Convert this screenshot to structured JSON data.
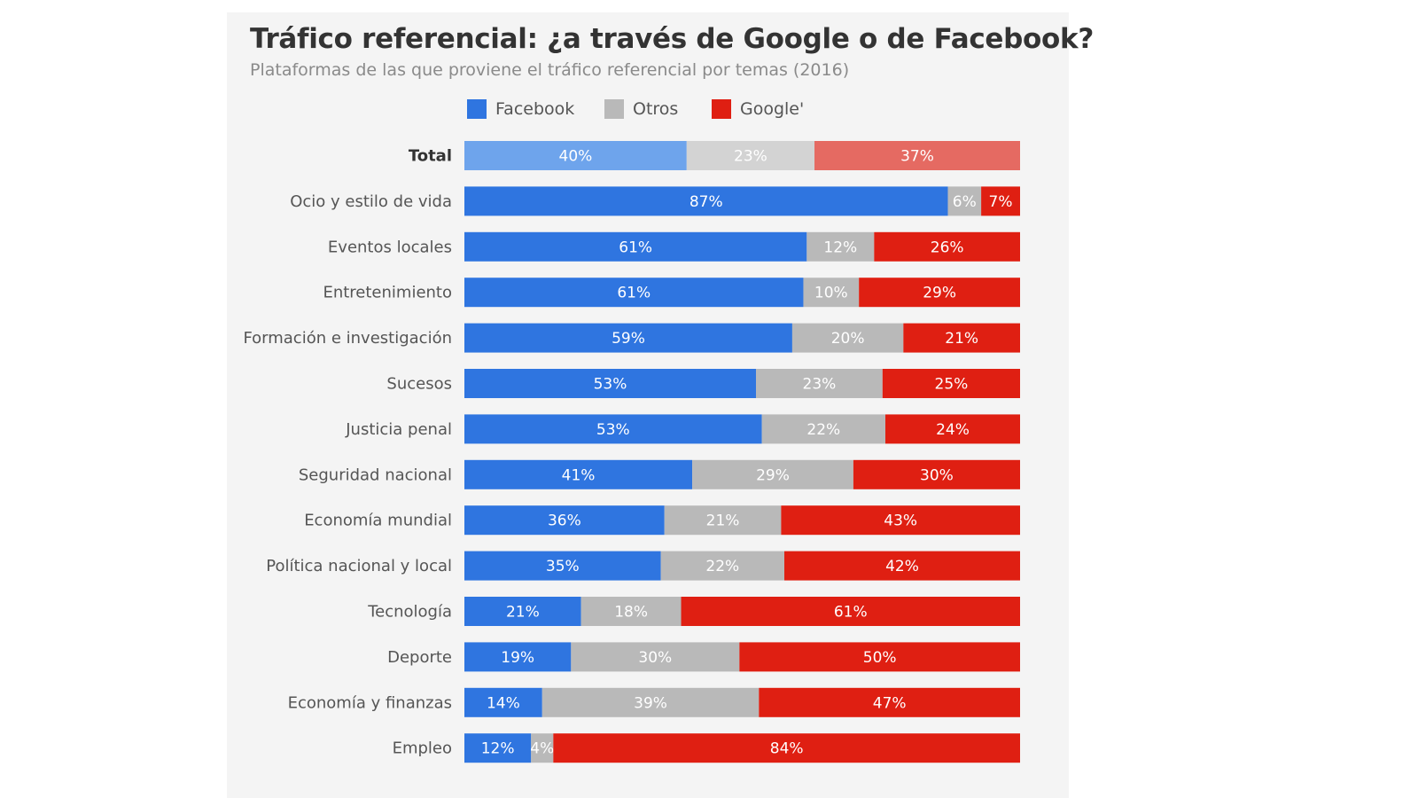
{
  "title": "Tráfico referencial: ¿a través de Google o de Facebook?",
  "subtitle": "Plataformas de las que proviene el tráfico referencial por temas (2016)",
  "colors": {
    "facebook": "#2f75e0",
    "otros": "#b9b9b9",
    "google": "#df1f12",
    "facebook_total": "#6ea4ec",
    "otros_total": "#d3d3d3",
    "google_total": "#e56a62",
    "card_bg": "#f4f4f4"
  },
  "chart_data": {
    "type": "bar",
    "orientation": "horizontal",
    "stacked": true,
    "title": "Tráfico referencial: ¿a través de Google o de Facebook?",
    "subtitle": "Plataformas de las que proviene el tráfico referencial por temas (2016)",
    "legend": [
      "Facebook",
      "Otros",
      "Google'"
    ],
    "legend_position": "top",
    "categories": [
      "Total",
      "Ocio y estilo de vida",
      "Eventos locales",
      "Entretenimiento",
      "Formación e investigación",
      "Sucesos",
      "Justicia penal",
      "Seguridad nacional",
      "Economía mundial",
      "Política nacional y local",
      "Tecnología",
      "Deporte",
      "Economía y finanzas",
      "Empleo"
    ],
    "series": [
      {
        "name": "Facebook",
        "values": [
          40,
          87,
          61,
          61,
          59,
          53,
          53,
          41,
          36,
          35,
          21,
          19,
          14,
          12
        ]
      },
      {
        "name": "Otros",
        "values": [
          23,
          6,
          12,
          10,
          20,
          23,
          22,
          29,
          21,
          22,
          18,
          30,
          39,
          4
        ]
      },
      {
        "name": "Google'",
        "values": [
          37,
          7,
          26,
          29,
          21,
          25,
          24,
          30,
          43,
          42,
          61,
          50,
          47,
          84
        ]
      }
    ],
    "value_labels": [
      [
        "40%",
        "23%",
        "37%"
      ],
      [
        "87%",
        "6%",
        "7%"
      ],
      [
        "61%",
        "12%",
        "26%"
      ],
      [
        "61%",
        "10%",
        "29%"
      ],
      [
        "59%",
        "20%",
        "21%"
      ],
      [
        "53%",
        "23%",
        "25%"
      ],
      [
        "53%",
        "22%",
        "24%"
      ],
      [
        "41%",
        "29%",
        "30%"
      ],
      [
        "36%",
        "21%",
        "43%"
      ],
      [
        "35%",
        "22%",
        "42%"
      ],
      [
        "21%",
        "18%",
        "61%"
      ],
      [
        "19%",
        "30%",
        "50%"
      ],
      [
        "14%",
        "39%",
        "47%"
      ],
      [
        "12%",
        "4%",
        "84%"
      ]
    ],
    "unit": "%",
    "xlim": [
      0,
      100
    ],
    "grid": false
  }
}
